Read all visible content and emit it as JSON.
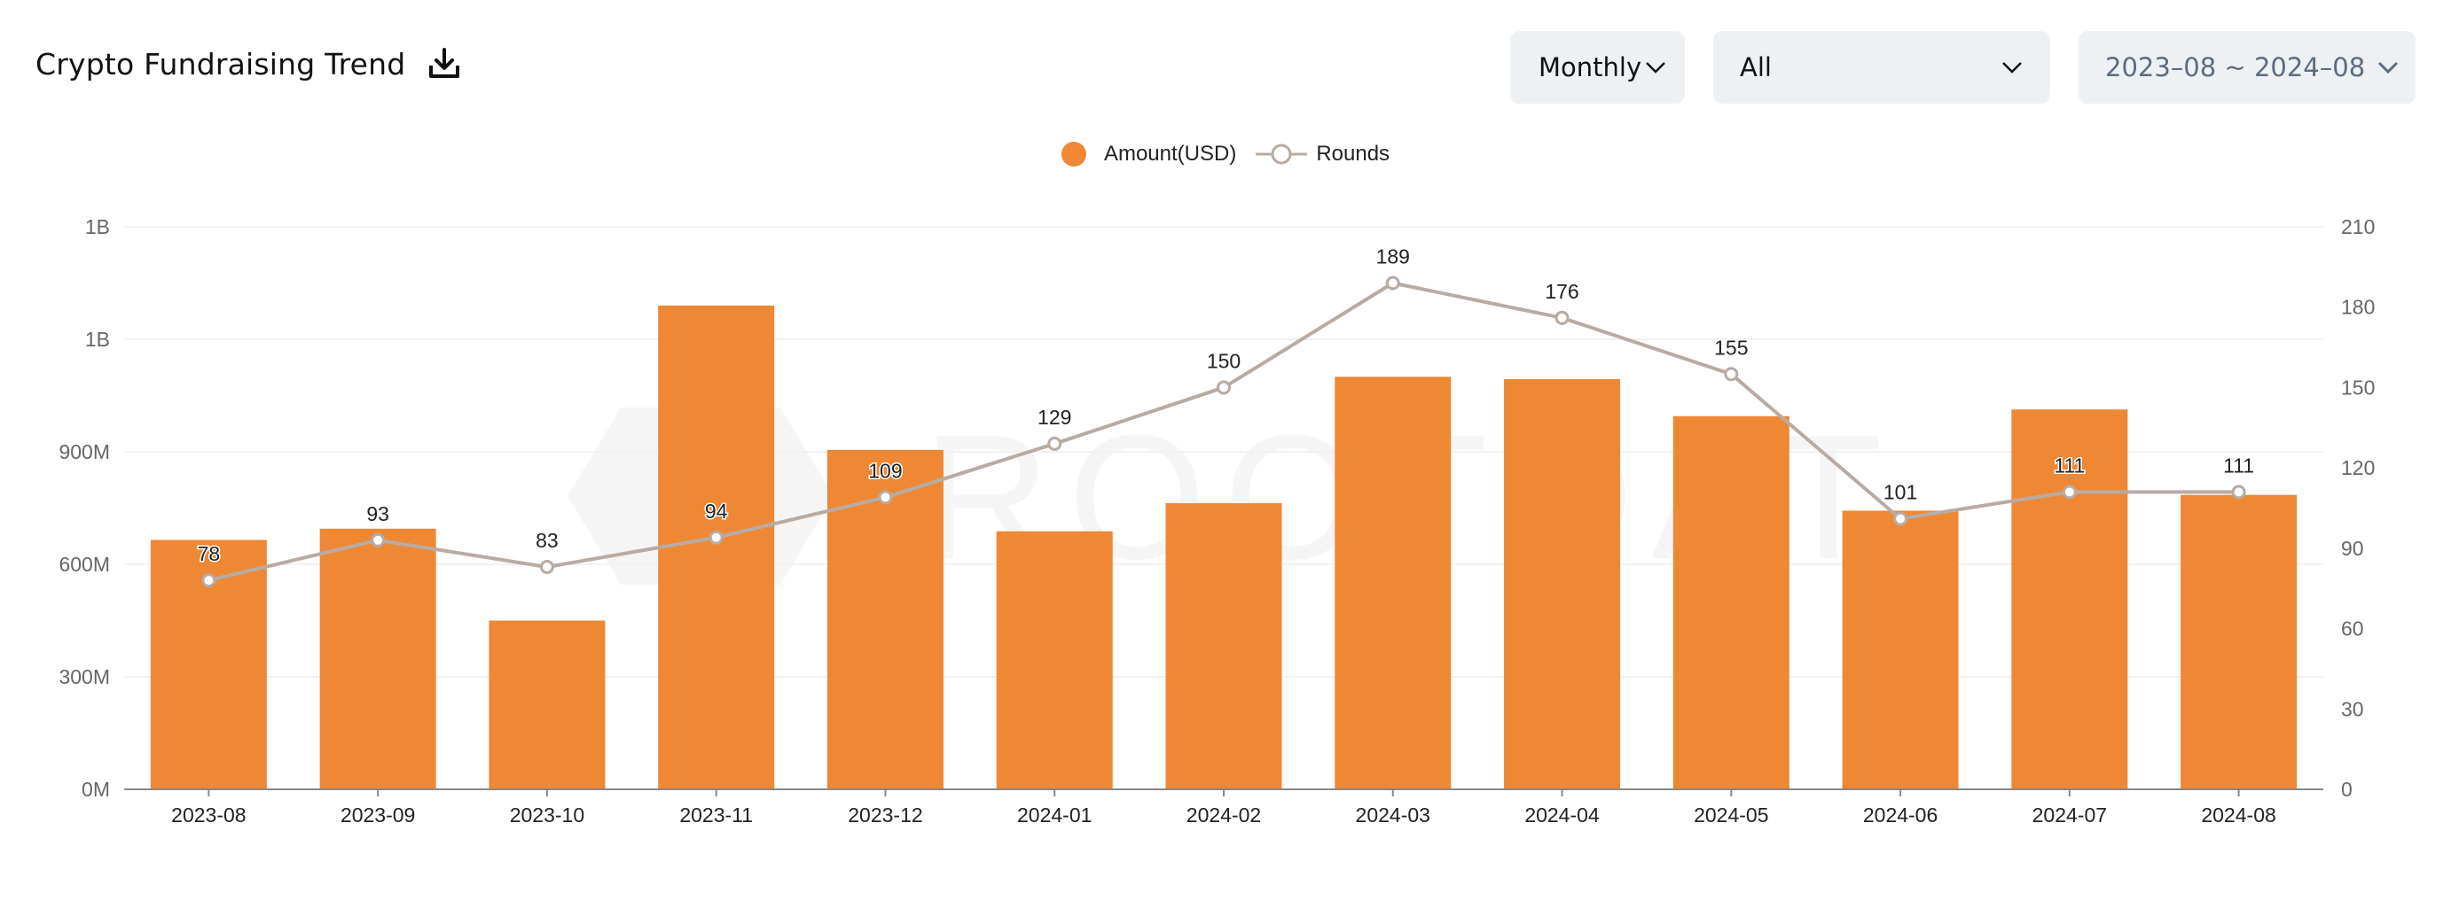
{
  "header": {
    "title": "Crypto Fundraising Trend",
    "download_icon": "download-icon",
    "period_select": "Monthly",
    "category_select": "All",
    "date_range": "2023–08  ~ 2024–08"
  },
  "legend": {
    "amount_label": "Amount(USD)",
    "rounds_label": "Rounds"
  },
  "watermark": "ROOTDATA",
  "colors": {
    "bar": "#ee8834",
    "line": "#b8aba3",
    "grid": "#f1f1f1",
    "axis": "#666666",
    "control_bg": "#eef1f4"
  },
  "chart_data": {
    "type": "bar",
    "categories": [
      "2023-08",
      "2023-09",
      "2023-10",
      "2023-11",
      "2023-12",
      "2024-01",
      "2024-02",
      "2024-03",
      "2024-04",
      "2024-05",
      "2024-06",
      "2024-07",
      "2024-08"
    ],
    "left_axis": {
      "ticks": [
        "0M",
        "300M",
        "600M",
        "900M",
        "1B",
        "1B"
      ],
      "ylim": [
        0,
        1500
      ]
    },
    "right_axis": {
      "ticks": [
        "0",
        "30",
        "60",
        "90",
        "120",
        "150",
        "180",
        "210"
      ],
      "ylim": [
        0,
        210
      ]
    },
    "grid": true,
    "legend_position": "top-center",
    "series": [
      {
        "name": "Amount(USD)",
        "type": "bar",
        "axis": "left",
        "unit": "M",
        "values": [
          665,
          695,
          450,
          1290,
          905,
          688,
          763,
          1100,
          1094,
          995,
          743,
          1013,
          785
        ]
      },
      {
        "name": "Rounds",
        "type": "line",
        "axis": "right",
        "values": [
          78,
          93,
          83,
          94,
          109,
          129,
          150,
          189,
          176,
          155,
          101,
          111,
          111
        ]
      }
    ]
  }
}
